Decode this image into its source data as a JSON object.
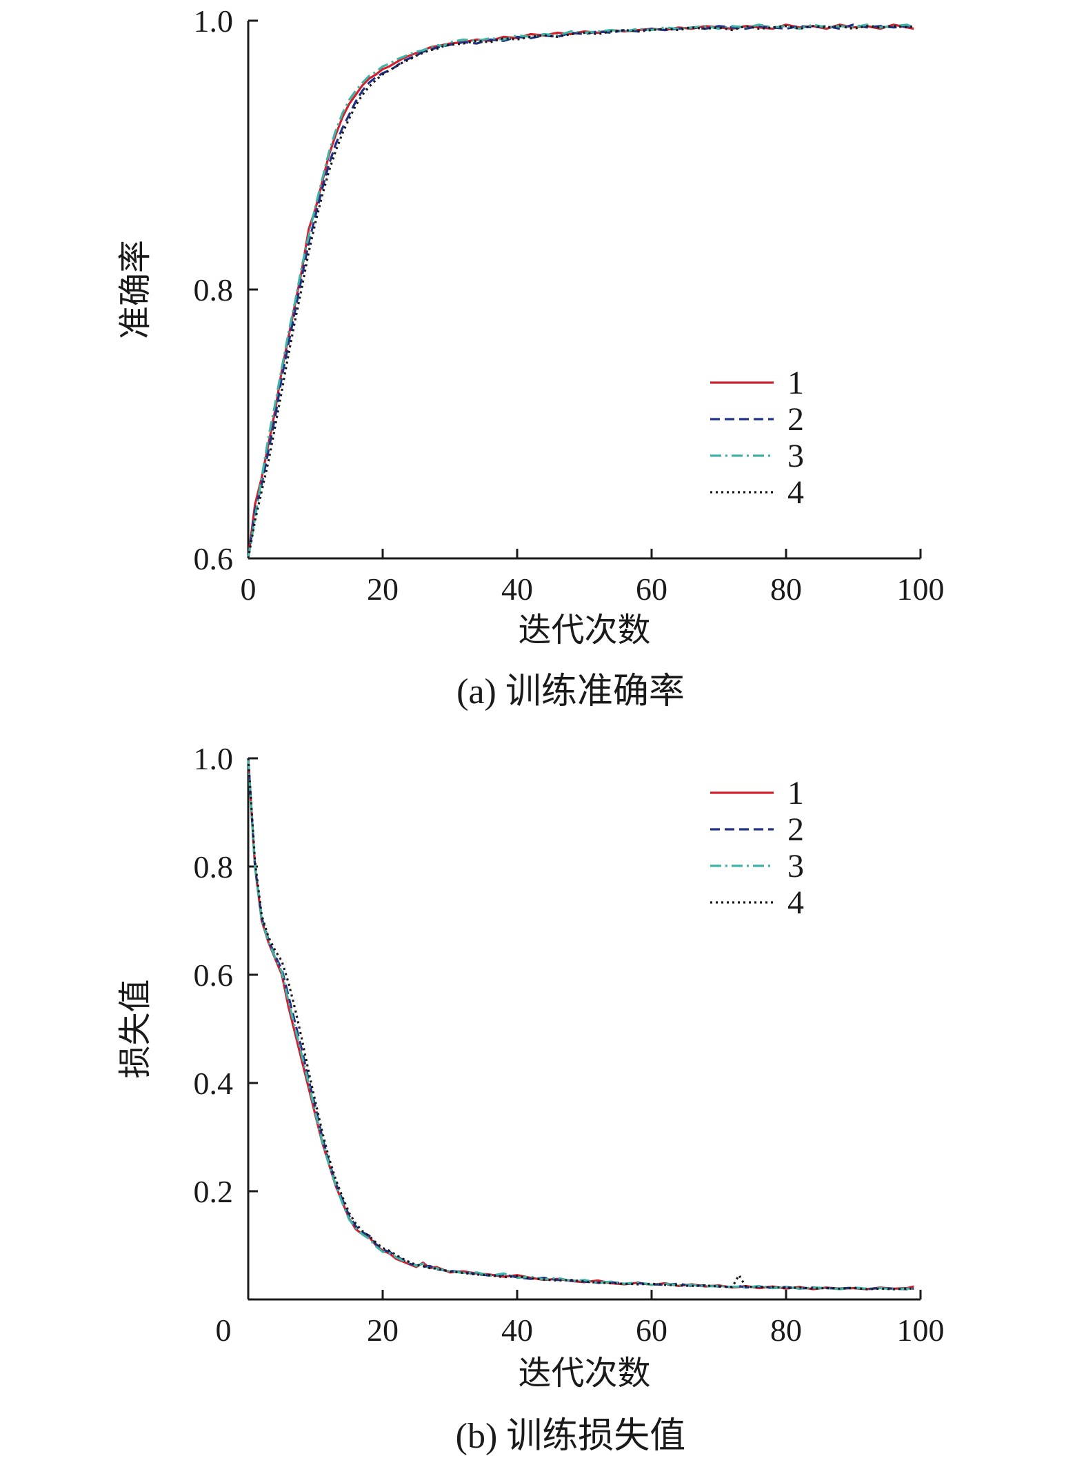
{
  "chart_data": [
    {
      "type": "line",
      "panel": "a",
      "caption": "(a) 训练准确率",
      "xlabel": "迭代次数",
      "ylabel": "准确率",
      "xlim": [
        0,
        100
      ],
      "ylim": [
        0.6,
        1.0
      ],
      "xticks": [
        0,
        20,
        40,
        60,
        80,
        100
      ],
      "xtick_labels": [
        "0",
        "20",
        "40",
        "60",
        "80",
        "100"
      ],
      "yticks": [
        0.6,
        0.8,
        1.0
      ],
      "ytick_labels": [
        "0.6",
        "0.8",
        "1.0"
      ],
      "legend_position": "center-right",
      "grid": false,
      "x": [
        0,
        1,
        2,
        3,
        4,
        5,
        6,
        7,
        8,
        9,
        10,
        11,
        12,
        13,
        14,
        15,
        16,
        17,
        18,
        19,
        20,
        21,
        22,
        23,
        24,
        25,
        26,
        27,
        28,
        29,
        30,
        32,
        34,
        36,
        38,
        40,
        42,
        44,
        46,
        48,
        50,
        52,
        54,
        56,
        58,
        60,
        62,
        64,
        66,
        68,
        70,
        72,
        74,
        76,
        78,
        80,
        82,
        84,
        86,
        88,
        90,
        92,
        94,
        96,
        98,
        99
      ],
      "series": [
        {
          "name": "1",
          "color": "#d0202e",
          "dash": "solid",
          "values": [
            0.6,
            0.64,
            0.66,
            0.685,
            0.71,
            0.74,
            0.765,
            0.79,
            0.815,
            0.845,
            0.86,
            0.88,
            0.9,
            0.915,
            0.928,
            0.938,
            0.945,
            0.952,
            0.957,
            0.96,
            0.964,
            0.966,
            0.969,
            0.972,
            0.974,
            0.976,
            0.978,
            0.98,
            0.981,
            0.982,
            0.983,
            0.984,
            0.986,
            0.985,
            0.988,
            0.987,
            0.99,
            0.989,
            0.991,
            0.99,
            0.992,
            0.991,
            0.993,
            0.992,
            0.993,
            0.994,
            0.993,
            0.995,
            0.994,
            0.996,
            0.995,
            0.994,
            0.996,
            0.995,
            0.994,
            0.997,
            0.995,
            0.996,
            0.994,
            0.997,
            0.995,
            0.996,
            0.994,
            0.997,
            0.995,
            0.994
          ]
        },
        {
          "name": "2",
          "color": "#1f3287",
          "dash": "dashed",
          "values": [
            0.6,
            0.635,
            0.655,
            0.68,
            0.705,
            0.735,
            0.76,
            0.785,
            0.81,
            0.835,
            0.855,
            0.875,
            0.893,
            0.908,
            0.92,
            0.93,
            0.94,
            0.948,
            0.954,
            0.958,
            0.961,
            0.963,
            0.966,
            0.97,
            0.972,
            0.974,
            0.977,
            0.978,
            0.98,
            0.981,
            0.982,
            0.984,
            0.983,
            0.986,
            0.985,
            0.988,
            0.987,
            0.989,
            0.988,
            0.991,
            0.99,
            0.992,
            0.991,
            0.993,
            0.992,
            0.994,
            0.993,
            0.994,
            0.995,
            0.994,
            0.996,
            0.995,
            0.994,
            0.996,
            0.995,
            0.994,
            0.996,
            0.995,
            0.996,
            0.994,
            0.997,
            0.995,
            0.996,
            0.995,
            0.996,
            0.995
          ]
        },
        {
          "name": "3",
          "color": "#3fb3a6",
          "dash": "dashdot",
          "values": [
            0.6,
            0.63,
            0.66,
            0.69,
            0.715,
            0.742,
            0.768,
            0.792,
            0.818,
            0.84,
            0.862,
            0.882,
            0.902,
            0.918,
            0.931,
            0.941,
            0.948,
            0.954,
            0.959,
            0.962,
            0.966,
            0.968,
            0.971,
            0.973,
            0.975,
            0.977,
            0.978,
            0.98,
            0.982,
            0.981,
            0.984,
            0.986,
            0.985,
            0.987,
            0.986,
            0.989,
            0.988,
            0.99,
            0.989,
            0.992,
            0.991,
            0.992,
            0.993,
            0.992,
            0.994,
            0.993,
            0.995,
            0.994,
            0.995,
            0.996,
            0.994,
            0.996,
            0.995,
            0.997,
            0.995,
            0.996,
            0.994,
            0.997,
            0.995,
            0.996,
            0.995,
            0.997,
            0.995,
            0.996,
            0.997,
            0.995
          ]
        },
        {
          "name": "4",
          "color": "#1a1a1a",
          "dash": "dotted",
          "values": [
            0.6,
            0.628,
            0.65,
            0.672,
            0.698,
            0.725,
            0.752,
            0.778,
            0.802,
            0.828,
            0.85,
            0.87,
            0.888,
            0.903,
            0.916,
            0.927,
            0.937,
            0.945,
            0.951,
            0.956,
            0.96,
            0.963,
            0.966,
            0.969,
            0.971,
            0.974,
            0.976,
            0.978,
            0.979,
            0.981,
            0.982,
            0.983,
            0.985,
            0.984,
            0.987,
            0.986,
            0.988,
            0.989,
            0.988,
            0.99,
            0.991,
            0.99,
            0.992,
            0.993,
            0.992,
            0.993,
            0.994,
            0.993,
            0.995,
            0.994,
            0.995,
            0.993,
            0.996,
            0.994,
            0.995,
            0.996,
            0.994,
            0.996,
            0.995,
            0.996,
            0.994,
            0.996,
            0.995,
            0.996,
            0.995,
            0.996
          ]
        }
      ]
    },
    {
      "type": "line",
      "panel": "b",
      "caption": "(b) 训练损失值",
      "xlabel": "迭代次数",
      "ylabel": "损失值",
      "xlim": [
        0,
        100
      ],
      "ylim": [
        0.0,
        1.0
      ],
      "xticks": [
        0,
        20,
        40,
        60,
        80,
        100
      ],
      "xtick_labels": [
        "0",
        "20",
        "40",
        "60",
        "80",
        "100"
      ],
      "yticks": [
        0.2,
        0.4,
        0.6,
        0.8,
        1.0
      ],
      "ytick_labels": [
        "0.2",
        "0.4",
        "0.6",
        "0.8",
        "1.0"
      ],
      "legend_position": "top-right",
      "grid": false,
      "x": [
        0,
        1,
        2,
        3,
        4,
        5,
        6,
        7,
        8,
        9,
        10,
        11,
        12,
        13,
        14,
        15,
        16,
        17,
        18,
        19,
        20,
        21,
        22,
        23,
        24,
        25,
        26,
        27,
        28,
        29,
        30,
        32,
        34,
        36,
        38,
        40,
        42,
        44,
        46,
        48,
        50,
        52,
        54,
        56,
        58,
        60,
        62,
        64,
        66,
        68,
        70,
        72,
        73,
        74,
        76,
        78,
        80,
        82,
        84,
        86,
        88,
        90,
        92,
        94,
        96,
        98,
        99
      ],
      "series": [
        {
          "name": "1",
          "color": "#d0202e",
          "dash": "solid",
          "values": [
            1.0,
            0.8,
            0.7,
            0.66,
            0.63,
            0.6,
            0.54,
            0.49,
            0.44,
            0.39,
            0.34,
            0.29,
            0.25,
            0.21,
            0.18,
            0.15,
            0.13,
            0.12,
            0.115,
            0.1,
            0.09,
            0.085,
            0.075,
            0.07,
            0.065,
            0.06,
            0.068,
            0.058,
            0.06,
            0.055,
            0.05,
            0.052,
            0.048,
            0.046,
            0.042,
            0.045,
            0.04,
            0.036,
            0.038,
            0.034,
            0.032,
            0.035,
            0.03,
            0.028,
            0.031,
            0.027,
            0.03,
            0.025,
            0.028,
            0.024,
            0.026,
            0.022,
            0.023,
            0.025,
            0.021,
            0.024,
            0.02,
            0.023,
            0.019,
            0.022,
            0.02,
            0.021,
            0.019,
            0.022,
            0.02,
            0.021,
            0.024
          ]
        },
        {
          "name": "2",
          "color": "#1f3287",
          "dash": "dashed",
          "values": [
            1.0,
            0.8,
            0.705,
            0.665,
            0.635,
            0.61,
            0.56,
            0.51,
            0.46,
            0.405,
            0.355,
            0.3,
            0.255,
            0.215,
            0.185,
            0.155,
            0.135,
            0.124,
            0.118,
            0.102,
            0.092,
            0.088,
            0.08,
            0.073,
            0.066,
            0.063,
            0.06,
            0.062,
            0.056,
            0.054,
            0.053,
            0.05,
            0.047,
            0.044,
            0.046,
            0.041,
            0.038,
            0.04,
            0.036,
            0.035,
            0.033,
            0.031,
            0.032,
            0.029,
            0.03,
            0.028,
            0.027,
            0.029,
            0.025,
            0.026,
            0.024,
            0.023,
            0.025,
            0.022,
            0.024,
            0.021,
            0.023,
            0.02,
            0.022,
            0.021,
            0.02,
            0.022,
            0.019,
            0.021,
            0.02,
            0.019,
            0.02
          ]
        },
        {
          "name": "3",
          "color": "#3fb3a6",
          "dash": "dashdot",
          "values": [
            1.0,
            0.8,
            0.702,
            0.662,
            0.632,
            0.605,
            0.55,
            0.5,
            0.45,
            0.398,
            0.345,
            0.292,
            0.25,
            0.212,
            0.178,
            0.148,
            0.132,
            0.12,
            0.112,
            0.098,
            0.088,
            0.086,
            0.078,
            0.072,
            0.068,
            0.062,
            0.066,
            0.057,
            0.058,
            0.054,
            0.052,
            0.049,
            0.05,
            0.044,
            0.048,
            0.04,
            0.042,
            0.037,
            0.04,
            0.034,
            0.036,
            0.031,
            0.033,
            0.029,
            0.032,
            0.027,
            0.029,
            0.026,
            0.027,
            0.024,
            0.025,
            0.023,
            0.024,
            0.022,
            0.025,
            0.021,
            0.023,
            0.02,
            0.022,
            0.021,
            0.019,
            0.022,
            0.02,
            0.021,
            0.019,
            0.02,
            0.021
          ]
        },
        {
          "name": "4",
          "color": "#1a1a1a",
          "dash": "dotted",
          "values": [
            1.0,
            0.81,
            0.71,
            0.67,
            0.645,
            0.625,
            0.585,
            0.535,
            0.48,
            0.42,
            0.365,
            0.31,
            0.262,
            0.222,
            0.19,
            0.16,
            0.14,
            0.126,
            0.117,
            0.105,
            0.095,
            0.09,
            0.082,
            0.075,
            0.069,
            0.064,
            0.062,
            0.058,
            0.057,
            0.054,
            0.052,
            0.049,
            0.046,
            0.045,
            0.041,
            0.043,
            0.039,
            0.037,
            0.035,
            0.036,
            0.033,
            0.031,
            0.03,
            0.029,
            0.028,
            0.029,
            0.027,
            0.026,
            0.025,
            0.026,
            0.024,
            0.023,
            0.045,
            0.024,
            0.022,
            0.023,
            0.021,
            0.022,
            0.02,
            0.021,
            0.02,
            0.021,
            0.019,
            0.02,
            0.019,
            0.02,
            0.02
          ]
        }
      ]
    }
  ]
}
